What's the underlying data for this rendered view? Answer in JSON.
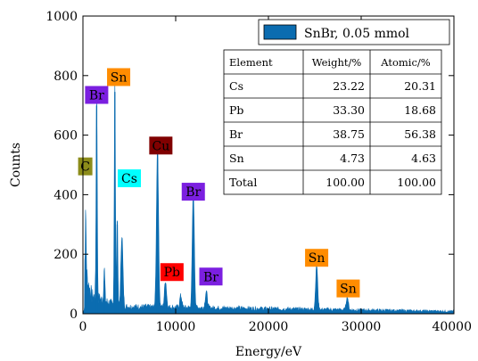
{
  "chart_data": {
    "type": "bar",
    "xlabel": "Energy/eV",
    "ylabel": "Counts",
    "xlim": [
      0,
      40000
    ],
    "ylim": [
      0,
      1000
    ],
    "xticks": [
      0,
      10000,
      20000,
      30000,
      40000
    ],
    "yticks": [
      0,
      200,
      400,
      600,
      800,
      1000
    ],
    "grid": false,
    "legend_position": "top-right",
    "series": [
      {
        "name": "SnBr, 0.05 mmol",
        "color": "#0b6cb0",
        "peaks": [
          {
            "x": 300,
            "y": 195
          },
          {
            "x": 1480,
            "y": 700
          },
          {
            "x": 2300,
            "y": 110
          },
          {
            "x": 3440,
            "y": 745
          },
          {
            "x": 3700,
            "y": 300
          },
          {
            "x": 4200,
            "y": 240
          },
          {
            "x": 8040,
            "y": 535
          },
          {
            "x": 8900,
            "y": 90
          },
          {
            "x": 10550,
            "y": 40
          },
          {
            "x": 11900,
            "y": 395
          },
          {
            "x": 13300,
            "y": 55
          },
          {
            "x": 25200,
            "y": 150
          },
          {
            "x": 28500,
            "y": 45
          }
        ]
      }
    ],
    "peak_labels": [
      {
        "text": "C",
        "x": 250,
        "y": 495,
        "bg": "#8c8c1a"
      },
      {
        "text": "Br",
        "x": 1480,
        "y": 735,
        "bg": "#7b1fe0"
      },
      {
        "text": "Sn",
        "x": 3850,
        "y": 795,
        "bg": "#ff8c00"
      },
      {
        "text": "Cs",
        "x": 5000,
        "y": 455,
        "bg": "#00ffff"
      },
      {
        "text": "Cu",
        "x": 8400,
        "y": 565,
        "bg": "#800000"
      },
      {
        "text": "Br",
        "x": 11900,
        "y": 410,
        "bg": "#7b1fe0"
      },
      {
        "text": "Pb",
        "x": 9600,
        "y": 140,
        "bg": "#ff0000"
      },
      {
        "text": "Br",
        "x": 13800,
        "y": 125,
        "bg": "#7b1fe0"
      },
      {
        "text": "Sn",
        "x": 25200,
        "y": 188,
        "bg": "#ff8c00"
      },
      {
        "text": "Sn",
        "x": 28600,
        "y": 85,
        "bg": "#ff8c00"
      }
    ],
    "table": {
      "headers": [
        "Element",
        "Weight/%",
        "Atomic/%"
      ],
      "rows": [
        [
          "Cs",
          "23.22",
          "20.31"
        ],
        [
          "Pb",
          "33.30",
          "18.68"
        ],
        [
          "Br",
          "38.75",
          "56.38"
        ],
        [
          "Sn",
          "4.73",
          "4.63"
        ],
        [
          "Total",
          "100.00",
          "100.00"
        ]
      ]
    }
  }
}
